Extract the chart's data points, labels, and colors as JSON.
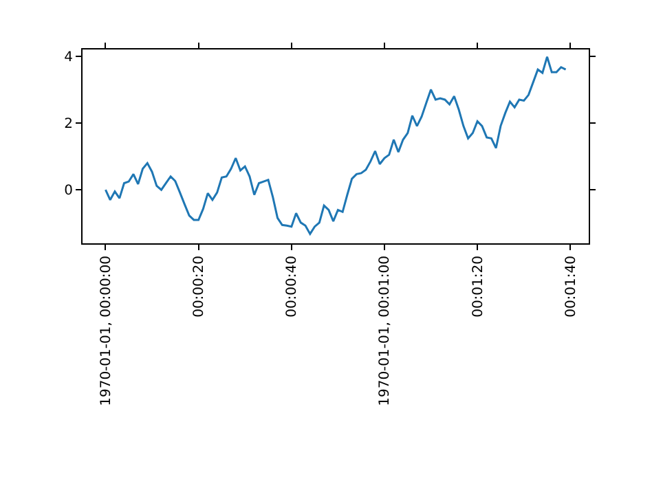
{
  "chart_data": {
    "type": "line",
    "x": [
      0,
      1,
      2,
      3,
      4,
      5,
      6,
      7,
      8,
      9,
      10,
      11,
      12,
      13,
      14,
      15,
      16,
      17,
      18,
      19,
      20,
      21,
      22,
      23,
      24,
      25,
      26,
      27,
      28,
      29,
      30,
      31,
      32,
      33,
      34,
      35,
      36,
      37,
      38,
      39,
      40,
      41,
      42,
      43,
      44,
      45,
      46,
      47,
      48,
      49,
      50,
      51,
      52,
      53,
      54,
      55,
      56,
      57,
      58,
      59,
      60,
      61,
      62,
      63,
      64,
      65,
      66,
      67,
      68,
      69,
      70,
      71,
      72,
      73,
      74,
      75,
      76,
      77,
      78,
      79,
      80,
      81,
      82,
      83,
      84,
      85,
      86,
      87,
      88,
      89,
      90,
      91,
      92,
      93,
      94,
      95,
      96,
      97,
      98,
      99
    ],
    "series": [
      {
        "color": "#1f77b4",
        "values": [
          0,
          -0.3,
          -0.05,
          -0.25,
          0.2,
          0.25,
          0.47,
          0.17,
          0.63,
          0.8,
          0.54,
          0.12,
          0,
          0.2,
          0.4,
          0.26,
          -0.08,
          -0.43,
          -0.77,
          -0.9,
          -0.9,
          -0.57,
          -0.1,
          -0.3,
          -0.08,
          0.37,
          0.4,
          0.63,
          0.95,
          0.58,
          0.7,
          0.4,
          -0.15,
          0.2,
          0.25,
          0.3,
          -0.22,
          -0.84,
          -1.05,
          -1.07,
          -1.1,
          -0.7,
          -0.98,
          -1.07,
          -1.32,
          -1.1,
          -0.98,
          -0.47,
          -0.6,
          -0.94,
          -0.6,
          -0.66,
          -0.15,
          0.33,
          0.47,
          0.5,
          0.6,
          0.85,
          1.16,
          0.77,
          0.95,
          1.05,
          1.5,
          1.13,
          1.5,
          1.7,
          2.22,
          1.91,
          2.19,
          2.6,
          3.0,
          2.7,
          2.74,
          2.7,
          2.56,
          2.8,
          2.4,
          1.91,
          1.54,
          1.7,
          2.05,
          1.91,
          1.57,
          1.54,
          1.25,
          1.91,
          2.3,
          2.64,
          2.47,
          2.7,
          2.67,
          2.84,
          3.22,
          3.6,
          3.5,
          3.98,
          3.52,
          3.52,
          3.67,
          3.6
        ]
      }
    ],
    "xlim": [
      -4.95,
      103.95
    ],
    "xticks": [
      {
        "value": 0,
        "label": "1970-01-01, 00:00:00"
      },
      {
        "value": 20,
        "label": "00:00:20"
      },
      {
        "value": 40,
        "label": "00:00:40"
      },
      {
        "value": 60,
        "label": "1970-01-01, 00:01:00"
      },
      {
        "value": 80,
        "label": "00:01:20"
      },
      {
        "value": 100,
        "label": "00:01:40"
      }
    ],
    "ylim": [
      -1.6,
      4.2
    ],
    "yticks": [
      0,
      2,
      4
    ],
    "line_style": "solid"
  }
}
